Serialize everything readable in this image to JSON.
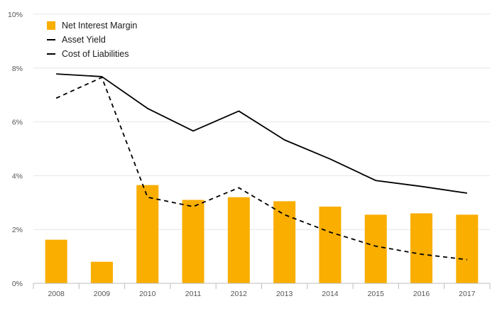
{
  "chart_data": {
    "type": "bar",
    "categories": [
      "2008",
      "2009",
      "2010",
      "2011",
      "2012",
      "2013",
      "2014",
      "2015",
      "2016",
      "2017"
    ],
    "series": [
      {
        "name": "Net Interest Margin",
        "kind": "bar",
        "color": "#f9ae00",
        "values": [
          1.62,
          0.8,
          3.65,
          3.1,
          3.2,
          3.05,
          2.85,
          2.55,
          2.6,
          2.55
        ]
      },
      {
        "name": "Asset Yield",
        "kind": "line",
        "style": "solid",
        "color": "#000000",
        "values": [
          7.78,
          7.68,
          6.5,
          5.66,
          6.4,
          5.33,
          4.62,
          3.82,
          3.6,
          3.35
        ]
      },
      {
        "name": "Cost of Liabilities",
        "kind": "line",
        "style": "dashed",
        "color": "#000000",
        "values": [
          6.88,
          7.65,
          3.2,
          2.85,
          3.55,
          2.55,
          1.9,
          1.38,
          1.08,
          0.88
        ]
      }
    ],
    "yticks": [
      "0%",
      "2%",
      "4%",
      "6%",
      "8%",
      "10%"
    ],
    "ylim": [
      0,
      10
    ],
    "grid": true,
    "legend_position": "top-left"
  }
}
